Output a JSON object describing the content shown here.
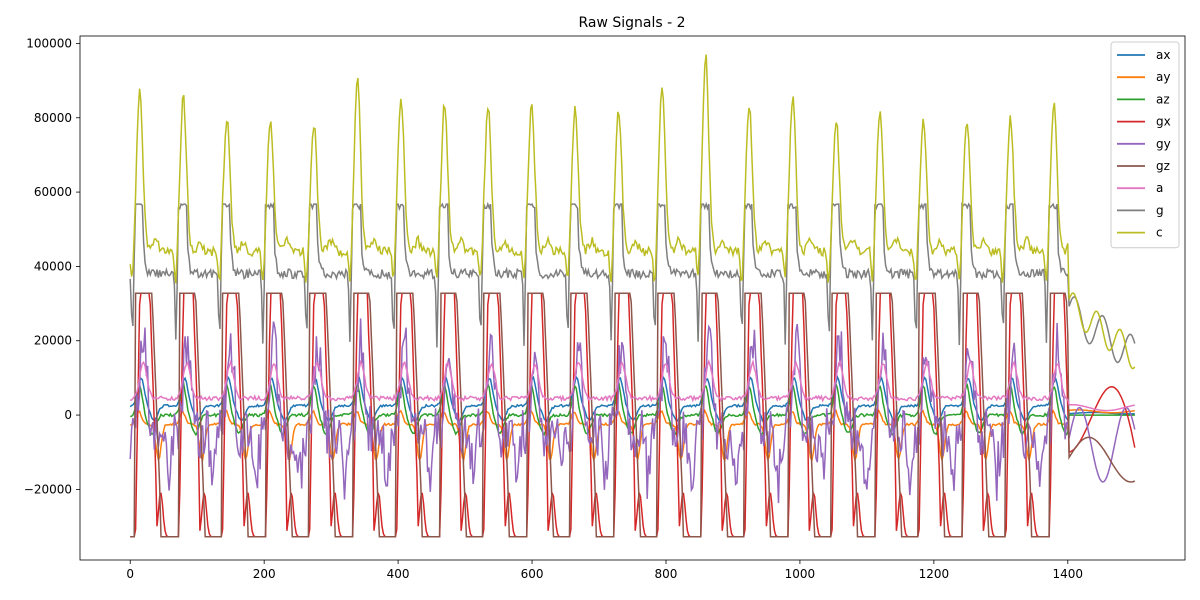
{
  "chart_data": {
    "type": "line",
    "title": "Raw Signals - 2",
    "xlabel": "",
    "ylabel": "",
    "xlim": [
      -75,
      1575
    ],
    "ylim": [
      -39000,
      102000
    ],
    "xticks": [
      0,
      200,
      400,
      600,
      800,
      1000,
      1200,
      1400
    ],
    "yticks": [
      -20000,
      0,
      20000,
      40000,
      60000,
      80000,
      100000
    ],
    "x_range": [
      0,
      1500
    ],
    "cycle_period": 65,
    "cycles_end": 1400,
    "legend": {
      "placement": "top-right"
    },
    "grid": false,
    "series": [
      {
        "name": "ax",
        "color": "#1f77b4",
        "baseline": 2500,
        "peak": 10000,
        "trough": -1500,
        "tail": 500
      },
      {
        "name": "ay",
        "color": "#ff7f0e",
        "baseline": -2500,
        "peak": 1000,
        "trough": -12000,
        "tail": 1000
      },
      {
        "name": "az",
        "color": "#2ca02c",
        "baseline": 0,
        "peak": 8000,
        "trough": -5000,
        "tail": 0
      },
      {
        "name": "gx",
        "color": "#d62728",
        "baseline": -32768,
        "peak": 32767,
        "trough": -32768,
        "tail": 12000
      },
      {
        "name": "gy",
        "color": "#9467bd",
        "baseline": -5000,
        "peak": 32767,
        "trough": -20000,
        "tail": -5000
      },
      {
        "name": "gz",
        "color": "#8c564b",
        "baseline": 32767,
        "peak": 32767,
        "trough": -32768,
        "tail": -12000
      },
      {
        "name": "a",
        "color": "#e377c2",
        "baseline": 4500,
        "peak": 14000,
        "trough": 3500,
        "tail": 2000
      },
      {
        "name": "g",
        "color": "#7f7f7f",
        "baseline": 38000,
        "peak": 56755,
        "trough": 14000,
        "tail": 25000
      },
      {
        "name": "c",
        "color": "#bcbd22",
        "baseline": 44000,
        "peak": 84000,
        "trough": 32000,
        "tail": 28000
      }
    ],
    "peak_values_c": [
      87500,
      86000,
      80000,
      80000,
      78500,
      90000,
      86000,
      84000,
      83000,
      84000,
      82000,
      82000,
      89000,
      97000,
      83000,
      86000,
      79000,
      82000,
      80000,
      79500,
      80000,
      84000
    ]
  }
}
